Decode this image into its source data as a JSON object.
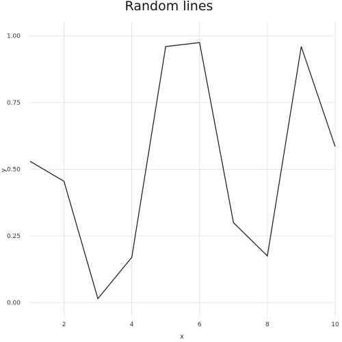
{
  "chart_data": {
    "type": "line",
    "title": "Random lines",
    "xlabel": "x",
    "ylabel": "y",
    "x": [
      1,
      2,
      3,
      4,
      5,
      6,
      7,
      8,
      9,
      10
    ],
    "series": [
      {
        "values": [
          0.53,
          0.455,
          0.015,
          0.17,
          0.96,
          0.975,
          0.3,
          0.175,
          0.96,
          0.585
        ]
      }
    ],
    "xlim": [
      1,
      10
    ],
    "ylim": [
      -0.05,
      1.05
    ],
    "xticks": [
      2,
      4,
      6,
      8,
      10
    ],
    "xtick_labels": [
      "2",
      "4",
      "6",
      "8",
      "10"
    ],
    "yticks": [
      0,
      0.25,
      0.5,
      0.75,
      1.0
    ],
    "ytick_labels": [
      "0.00",
      "0.25",
      "0.50",
      "0.75",
      "1.00"
    ],
    "grid": true,
    "line_color": "#222222",
    "grid_color": "#dcdcdc"
  }
}
